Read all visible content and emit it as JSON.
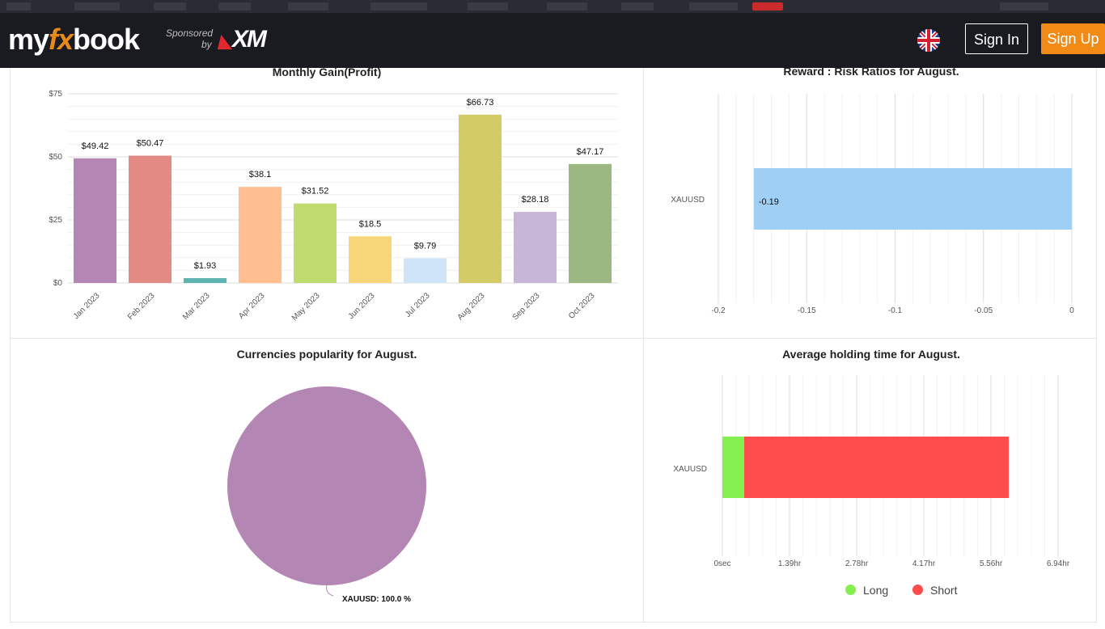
{
  "header": {
    "logo_my": "my",
    "logo_fx": "fx",
    "logo_book": "book",
    "sponsored_label": "Sponsored",
    "by_label": "by",
    "sponsor_brand": "XM",
    "flag_icon": "uk-flag-icon",
    "signin_label": "Sign In",
    "signup_label": "Sign Up",
    "accent_color": "#f18b15"
  },
  "monthly_chart": {
    "title": "Monthly Gain(Profit)"
  },
  "risk_chart": {
    "title": "Reward : Risk Ratios for August."
  },
  "pie_chart": {
    "title": "Currencies popularity for August.",
    "label": "XAUUSD: 100.0 %"
  },
  "holding_chart": {
    "title": "Average holding time for August.",
    "legend_long": "Long",
    "legend_short": "Short"
  },
  "chart_data": [
    {
      "type": "bar",
      "title": "Monthly Gain(Profit)",
      "categories": [
        "Jan 2023",
        "Feb 2023",
        "Mar 2023",
        "Apr 2023",
        "May 2023",
        "Jun 2023",
        "Jul 2023",
        "Aug 2023",
        "Sep 2023",
        "Oct 2023"
      ],
      "values": [
        49.42,
        50.47,
        1.93,
        38.1,
        31.52,
        18.5,
        9.79,
        66.73,
        28.18,
        47.17
      ],
      "value_labels": [
        "$49.42",
        "$50.47",
        "$1.93",
        "$38.1",
        "$31.52",
        "$18.5",
        "$9.79",
        "$66.73",
        "$28.18",
        "$47.17"
      ],
      "colors": [
        "#b486b4",
        "#e48a85",
        "#5fb6b0",
        "#ffbd90",
        "#c1dc6e",
        "#f6d676",
        "#cfe5f7",
        "#d3cc66",
        "#c8b6d8",
        "#9cb882"
      ],
      "yticks": [
        "$0",
        "$25",
        "$50",
        "$75"
      ],
      "ylim": [
        0,
        75
      ],
      "grid": true
    },
    {
      "type": "bar",
      "orientation": "horizontal",
      "title": "Reward : Risk Ratios for August.",
      "categories": [
        "XAUUSD"
      ],
      "values": [
        -0.19
      ],
      "value_labels": [
        "-0.19"
      ],
      "colors": [
        "#9fcff5"
      ],
      "xticks": [
        "-0.2",
        "-0.15",
        "-0.1",
        "-0.05",
        "0"
      ],
      "xlim": [
        -0.2,
        0
      ],
      "grid": true
    },
    {
      "type": "pie",
      "title": "Currencies popularity for August.",
      "categories": [
        "XAUUSD"
      ],
      "values": [
        100.0
      ],
      "colors": [
        "#b486b4"
      ]
    },
    {
      "type": "bar",
      "orientation": "horizontal",
      "stacked": true,
      "title": "Average holding time for August.",
      "categories": [
        "XAUUSD"
      ],
      "series": [
        {
          "name": "Long",
          "values": [
            0.45
          ],
          "color": "#83f04f"
        },
        {
          "name": "Short",
          "values": [
            5.47
          ],
          "color": "#ff4d4d"
        }
      ],
      "xticks": [
        "0sec",
        "1.39hr",
        "2.78hr",
        "4.17hr",
        "5.56hr",
        "6.94hr"
      ],
      "xlim": [
        0,
        6.94
      ],
      "legend": "bottom",
      "grid": true
    }
  ]
}
